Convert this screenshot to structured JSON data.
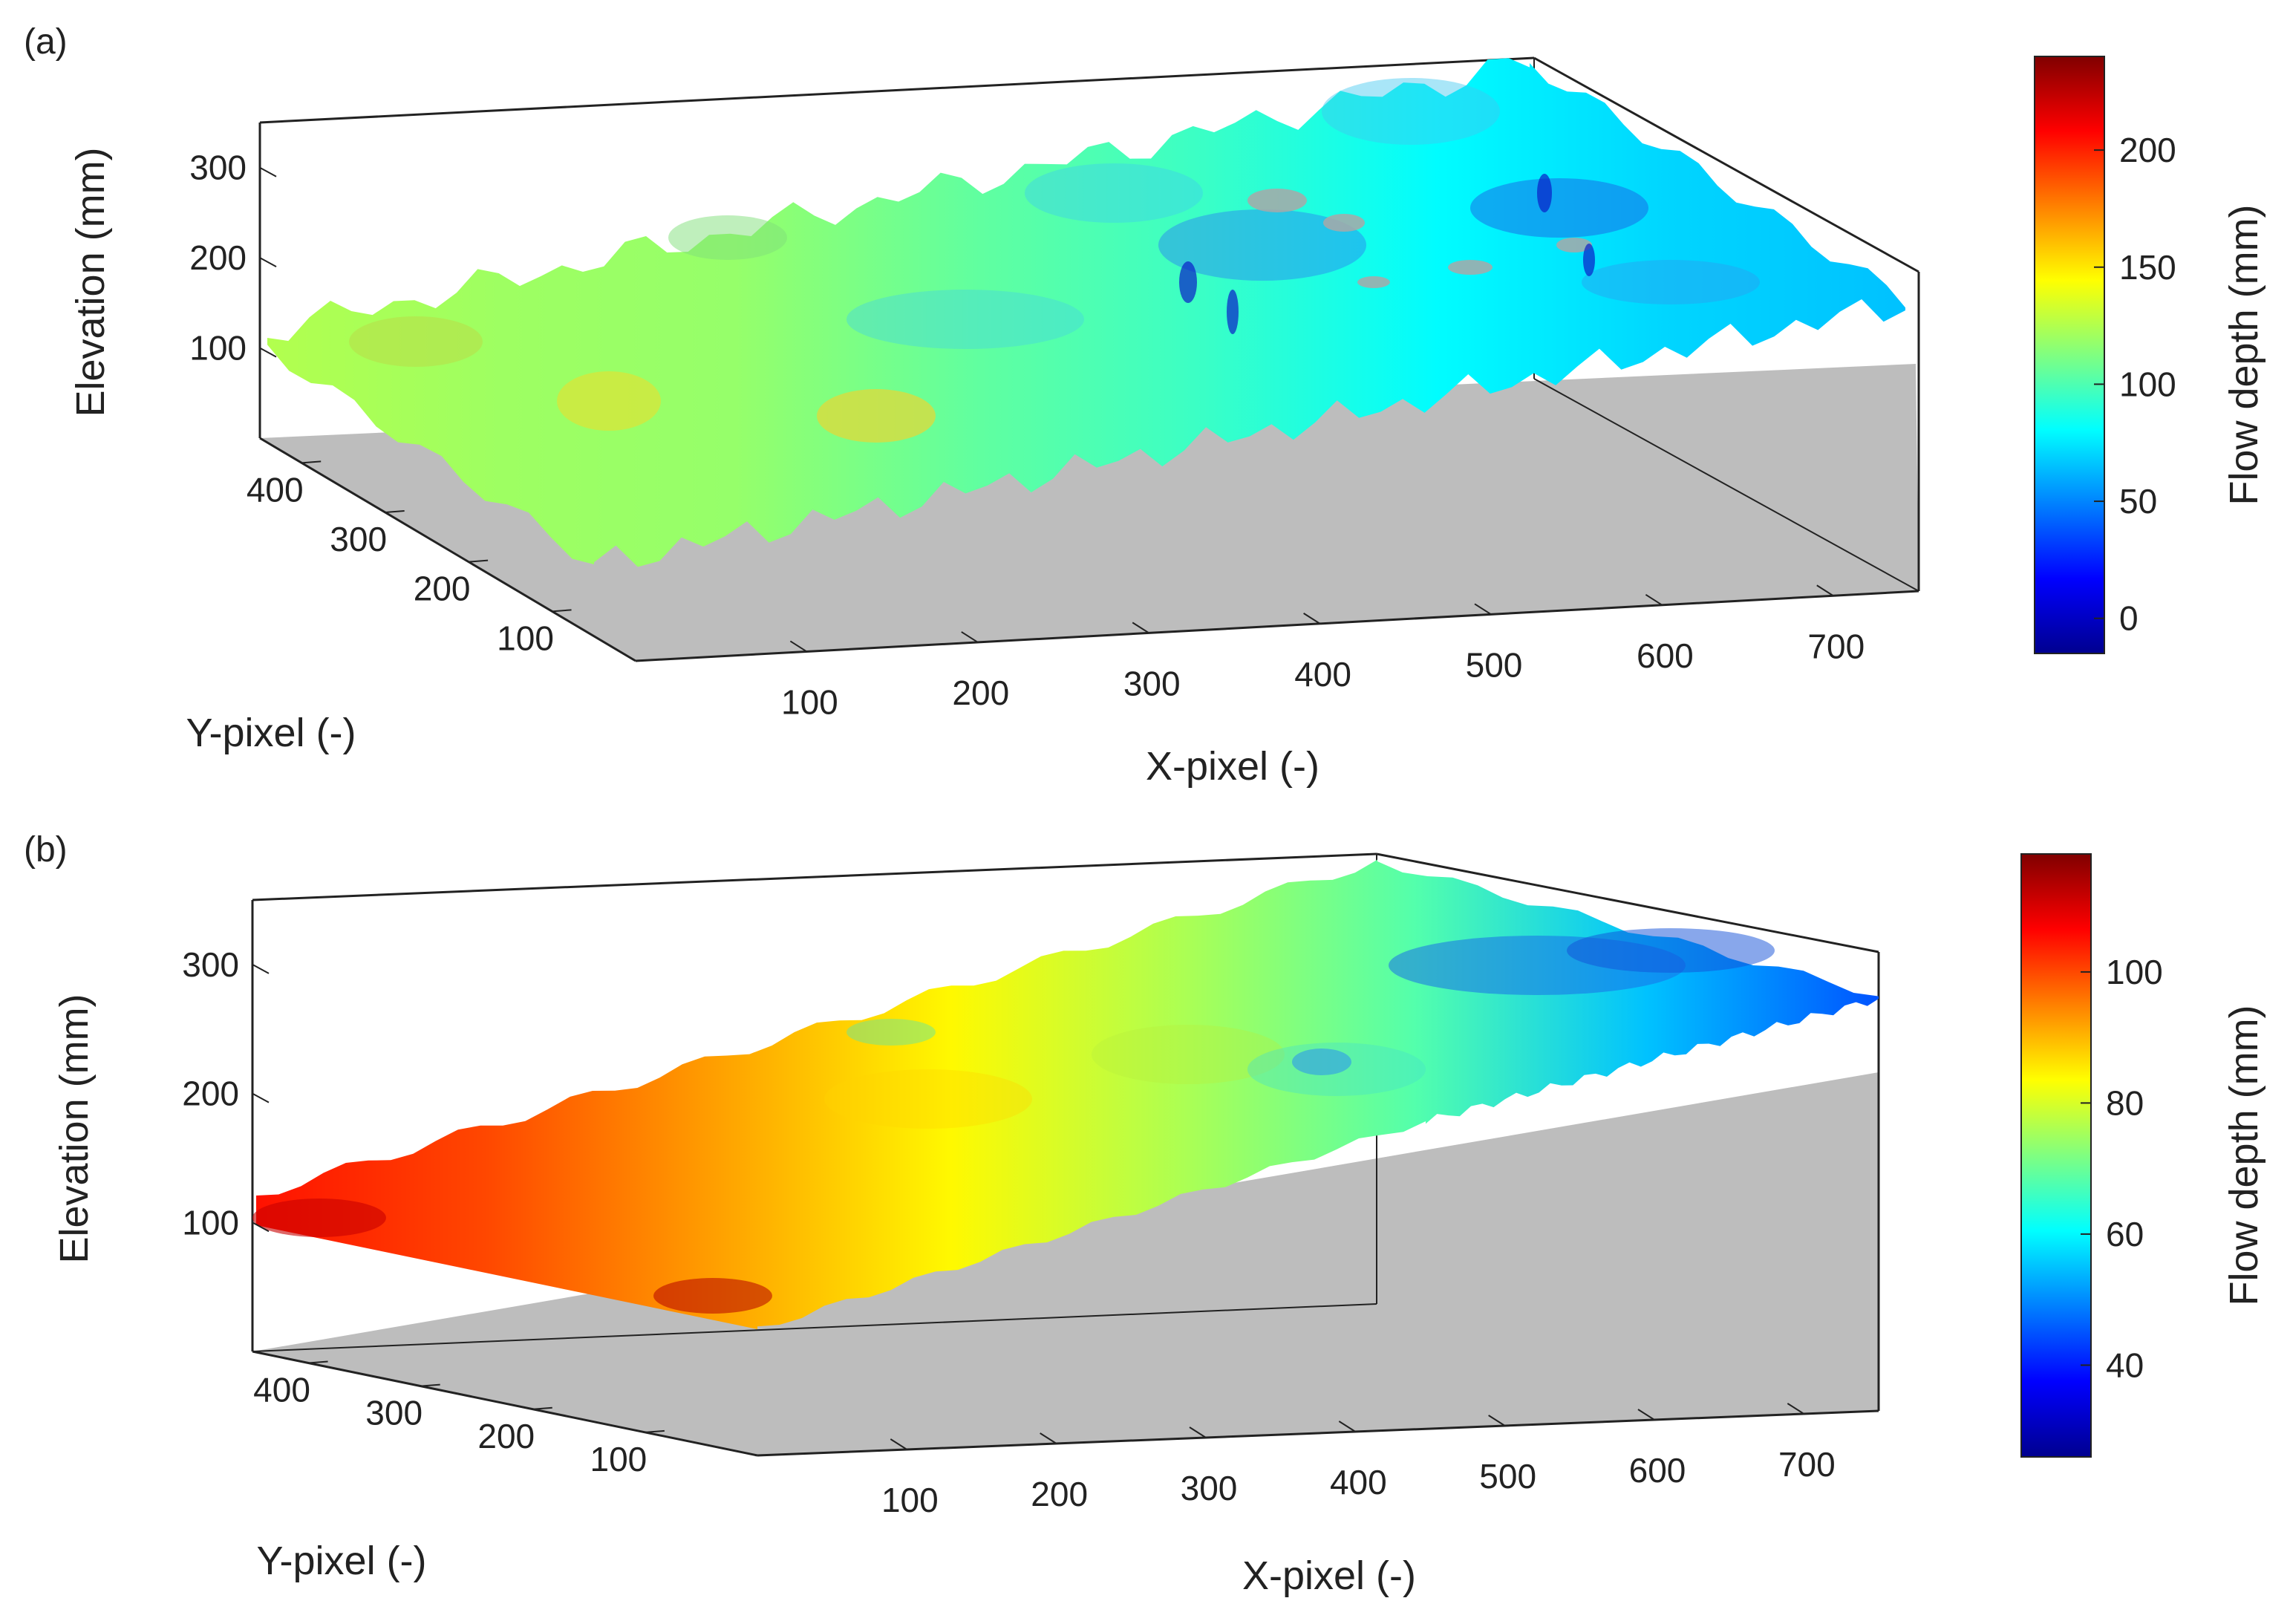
{
  "chart_data": [
    {
      "panel_label": "(a)",
      "type": "surface3d",
      "xlabel": "X-pixel (-)",
      "ylabel": "Y-pixel (-)",
      "zlabel": "Elevation (mm)",
      "xticks": [
        100,
        200,
        300,
        400,
        500,
        600,
        700
      ],
      "yticks": [
        100,
        200,
        300,
        400
      ],
      "zticks": [
        100,
        200,
        300
      ],
      "xlim": [
        0,
        750
      ],
      "ylim": [
        0,
        450
      ],
      "zlim": [
        0,
        350
      ],
      "colorbar": {
        "label": "Flow depth (mm)",
        "ticks": [
          0,
          50,
          100,
          150,
          200
        ],
        "range": [
          -15,
          240
        ],
        "colormap": [
          "#00008f",
          "#0000ff",
          "#0080ff",
          "#00ffff",
          "#80ff80",
          "#ffff00",
          "#ff8000",
          "#ff0000",
          "#800000"
        ]
      },
      "surface_mean_depth_profile": [
        125,
        120,
        118,
        105,
        95,
        80,
        70,
        65
      ],
      "surface_elevation_range": [
        70,
        320
      ],
      "floor_color": "#bdbdbd"
    },
    {
      "panel_label": "(b)",
      "type": "surface3d",
      "xlabel": "X-pixel (-)",
      "ylabel": "Y-pixel (-)",
      "zlabel": "Elevation (mm)",
      "xticks": [
        100,
        200,
        300,
        400,
        500,
        600,
        700
      ],
      "yticks": [
        100,
        200,
        300,
        400
      ],
      "zticks": [
        100,
        200,
        300
      ],
      "xlim": [
        0,
        750
      ],
      "ylim": [
        0,
        450
      ],
      "zlim": [
        0,
        350
      ],
      "colorbar": {
        "label": "Flow depth (mm)",
        "ticks": [
          40,
          60,
          80,
          100
        ],
        "range": [
          26,
          118
        ],
        "colormap": [
          "#00008f",
          "#0000ff",
          "#0080ff",
          "#00ffff",
          "#80ff80",
          "#ffff00",
          "#ff8000",
          "#ff0000",
          "#800000"
        ]
      },
      "surface_mean_depth_profile": [
        105,
        100,
        92,
        84,
        76,
        68,
        55,
        45
      ],
      "surface_elevation_range": [
        90,
        350
      ],
      "floor_color": "#bdbdbd"
    }
  ]
}
